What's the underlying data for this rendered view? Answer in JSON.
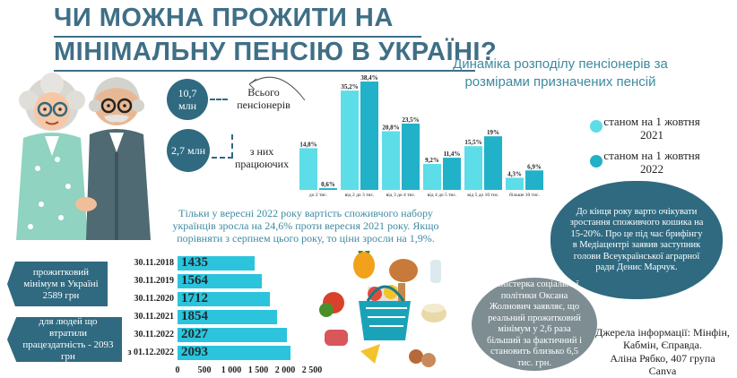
{
  "header": {
    "title_line1": "ЧИ МОЖНА ПРОЖИТИ НА",
    "title_line2": "МІНІМАЛЬНУ ПЕНСІЮ В УКРАЇНІ?"
  },
  "stats": {
    "total_value": "10,7 млн",
    "total_label": "Всього пенсіонерів",
    "working_value": "2,7 млн",
    "working_label": "з них працюючих"
  },
  "chart_data": [
    {
      "type": "bar",
      "title": "Динаміка розподілу пенсіонерів за розмірами призначених пенсій",
      "categories": [
        "до 2 тис.",
        "від 2 до 3 тис.",
        "від 3 до 4 тис.",
        "від 4 до 5 тис.",
        "від 5 до 10 тис.",
        "більше 10 тис."
      ],
      "series": [
        {
          "name": "станом на 1 жовтня 2021",
          "values": [
            14.8,
            35.2,
            20.8,
            9.2,
            15.5,
            4.3
          ],
          "labels": [
            "14,8%",
            "35,2%",
            "20,8%",
            "9,2%",
            "15,5%",
            "4,3%"
          ],
          "color": "#5ddde8"
        },
        {
          "name": "станом на 1 жовтня 2022",
          "values": [
            0.6,
            38.4,
            23.5,
            11.4,
            19.0,
            6.9
          ],
          "labels": [
            "0,6%",
            "38,4%",
            "23,5%",
            "11,4%",
            "19%",
            "6,9%"
          ],
          "color": "#21b1c8"
        }
      ],
      "ylim": [
        0,
        40
      ]
    },
    {
      "type": "bar",
      "orientation": "horizontal",
      "categories": [
        "30.11.2018",
        "30.11.2019",
        "30.11.2020",
        "30.11.2021",
        "30.11.2022",
        "з 01.12.2022"
      ],
      "values": [
        1435,
        1564,
        1712,
        1854,
        2027,
        2093
      ],
      "xticks": [
        "0",
        "500",
        "1 000",
        "1 500",
        "2 000",
        "2 500"
      ],
      "xlim": [
        0,
        2500
      ],
      "color": "#2bc4dc"
    }
  ],
  "notes": {
    "price_text": "Тільки у вересні 2022 року вартість споживчого набору українців зросла на 24,6% проти вересня 2021 року. Якщо порівняти з серпнем цього року, то ціни зросли на 1,9%.",
    "subsistence_label": "прожитковий мінімум в Україні 2589 грн",
    "disabled_label": "для людей що втратили працездатність - 2093 грн",
    "minister_quote": "Міністерка соціальної політики Оксана Жолнович заявляє, що реальний прожитковий мінімум у 2,6 раза більший за фактичний і становить близько 6,5 тис. грн.",
    "forecast_quote": "До кінця року варто очікувати зростання споживчого кошика на 15-20%. Про це під час брифінгу в Медіацентрі заявив заступник голови Всеукраїнської аграрної ради Денис Марчук.",
    "sources": "Джерела інформації: Мінфін, Кабмін, Єправда.",
    "author": "Аліна Рябко, 407 група",
    "tool": "Canva"
  }
}
